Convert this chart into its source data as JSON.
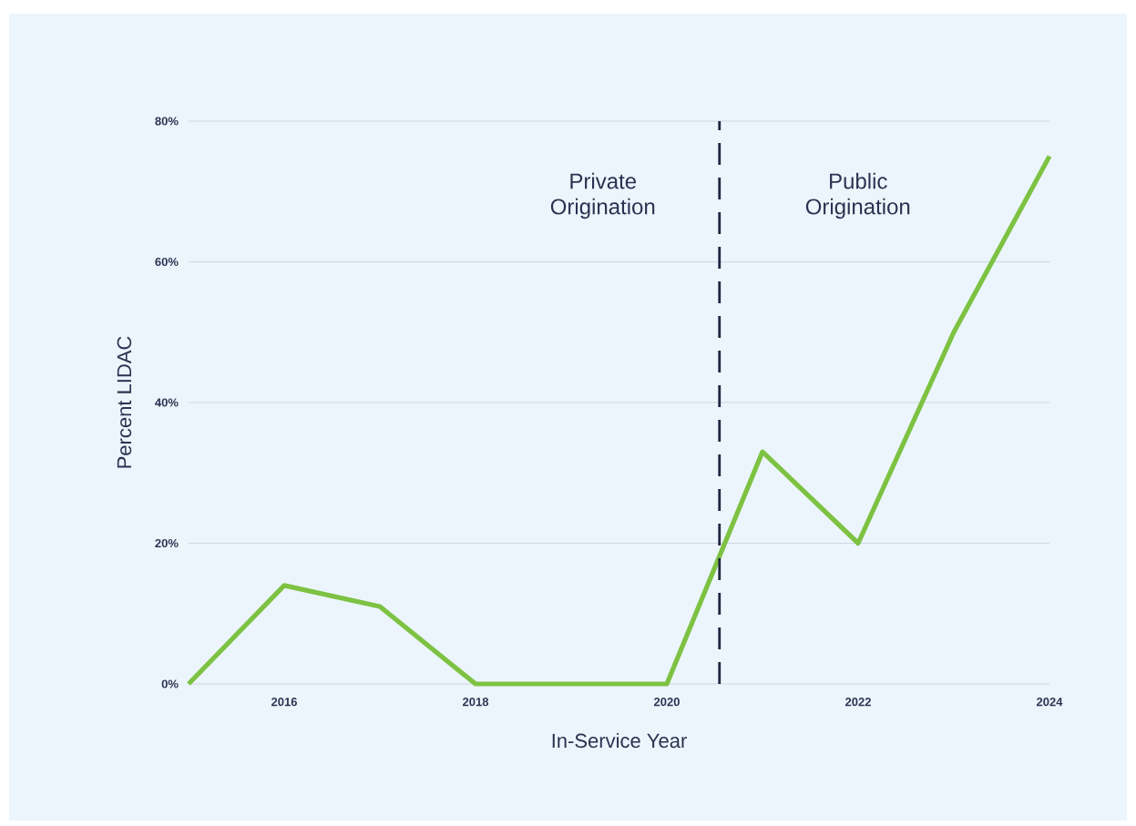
{
  "chart_data": {
    "type": "line",
    "xlabel": "In-Service Year",
    "ylabel": "Percent LIDAC",
    "x": [
      2015,
      2016,
      2017,
      2018,
      2019,
      2020,
      2021,
      2022,
      2023,
      2024
    ],
    "series": [
      {
        "color": "#7dc242",
        "values": [
          0,
          14,
          11,
          0,
          0,
          0,
          33,
          20,
          50,
          75
        ]
      }
    ],
    "xlim": [
      2015,
      2024
    ],
    "xticks": [
      2016,
      2018,
      2020,
      2022,
      2024
    ],
    "ylim": [
      0,
      80
    ],
    "yticks": [
      {
        "value": 0,
        "label": "0%"
      },
      {
        "value": 20,
        "label": "20%"
      },
      {
        "value": 40,
        "label": "40%"
      },
      {
        "value": 60,
        "label": "60%"
      },
      {
        "value": 80,
        "label": "80%"
      }
    ],
    "grid": "y",
    "marker": "none",
    "line_style": "solid",
    "ref_lines": [
      {
        "axis": "x",
        "value": 2020.55,
        "color": "#1f2640",
        "line_style": "dashed"
      }
    ],
    "annotations": [
      "Private Origination",
      "Public Origination"
    ]
  }
}
